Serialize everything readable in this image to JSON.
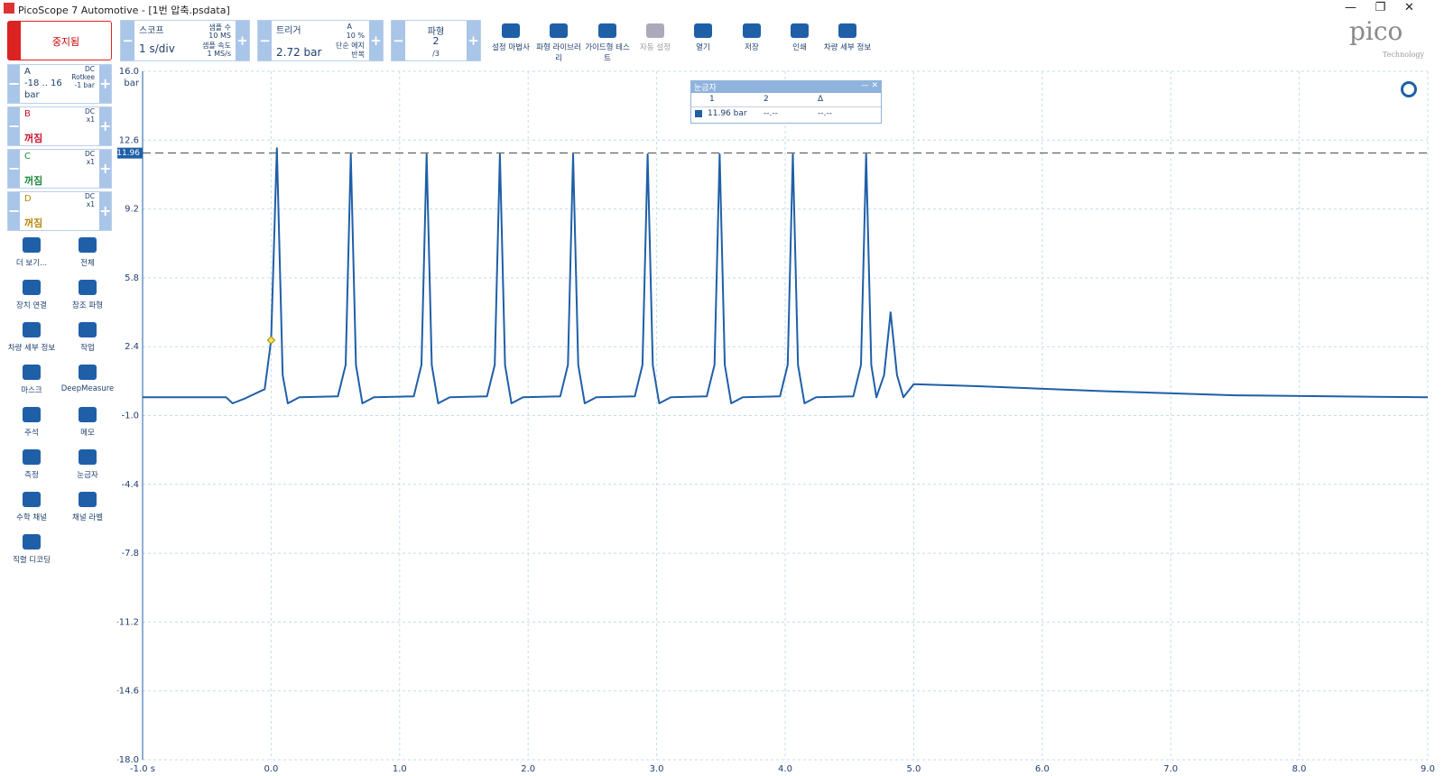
{
  "window_title": "PicoScope 7 Automotive - [1번 압축.psdata]",
  "stop_button": "중지됨",
  "scope": {
    "label": "스코프",
    "timebase": "1 s/div",
    "samples_label": "샘플 수",
    "samples": "10 MS",
    "rate_label": "샘플 속도",
    "rate": "1 MS/s"
  },
  "trigger": {
    "label": "트리거",
    "level": "2.72 bar",
    "channel": "A",
    "percent": "10 %",
    "mode": "단순 에지",
    "repeat": "반복"
  },
  "waveform": {
    "label": "파형",
    "current": "2",
    "total": "/3"
  },
  "toolbar": [
    "설정 마법사",
    "파형 라이브러리",
    "가이드형 테스트",
    "자동 설정",
    "열기",
    "저장",
    "인쇄",
    "차량 세부 정보"
  ],
  "logo": {
    "name": "pico",
    "sub": "Technology"
  },
  "channels": [
    {
      "name": "A",
      "range": "-18 .. 16",
      "unit": "bar",
      "coupling": "DC",
      "probe": "Rotkee",
      "offset": "-1 bar"
    },
    {
      "name": "B",
      "state": "꺼짐",
      "coupling": "DC",
      "probe": "x1"
    },
    {
      "name": "C",
      "state": "꺼짐",
      "coupling": "DC",
      "probe": "x1"
    },
    {
      "name": "D",
      "state": "꺼짐",
      "coupling": "DC",
      "probe": "x1"
    }
  ],
  "tools": [
    "더 보기...",
    "전체",
    "장치 연결",
    "참조 파형",
    "차량 세부 정보",
    "작업",
    "마스크",
    "DeepMeasure",
    "주석",
    "메모",
    "측정",
    "눈금자",
    "수학 채널",
    "채널 라벨",
    "직렬 디코딩"
  ],
  "ruler_window": {
    "title": "눈금자",
    "headers": [
      "1",
      "2",
      "Δ"
    ],
    "row": [
      "11.96 bar",
      "--.--",
      "--.--"
    ]
  },
  "chart_data": {
    "type": "line",
    "y_unit": "bar",
    "x": [
      -1.0,
      -0.35,
      -0.3,
      -0.2,
      -0.05,
      0.0,
      0.045,
      0.09,
      0.13,
      0.22,
      0.52,
      0.58,
      0.62,
      0.66,
      0.71,
      0.8,
      1.11,
      1.17,
      1.21,
      1.25,
      1.3,
      1.39,
      1.68,
      1.74,
      1.78,
      1.82,
      1.87,
      1.96,
      2.25,
      2.31,
      2.35,
      2.39,
      2.44,
      2.53,
      2.83,
      2.89,
      2.93,
      2.97,
      3.02,
      3.11,
      3.39,
      3.45,
      3.49,
      3.53,
      3.58,
      3.67,
      3.96,
      4.02,
      4.06,
      4.1,
      4.15,
      4.24,
      4.53,
      4.59,
      4.63,
      4.67,
      4.71,
      4.77,
      4.82,
      4.87,
      4.92,
      5.0,
      5.5,
      6.5,
      7.5,
      9.0
    ],
    "series": [
      {
        "name": "A",
        "color": "#1f5fa8",
        "values": [
          -0.1,
          -0.1,
          -0.4,
          -0.15,
          0.3,
          2.72,
          12.2,
          1.0,
          -0.4,
          -0.1,
          -0.05,
          1.5,
          11.9,
          1.5,
          -0.4,
          -0.1,
          -0.05,
          1.5,
          11.9,
          1.5,
          -0.4,
          -0.1,
          -0.05,
          1.5,
          11.9,
          1.5,
          -0.4,
          -0.1,
          -0.05,
          1.5,
          11.9,
          1.5,
          -0.4,
          -0.1,
          -0.05,
          1.5,
          11.9,
          1.5,
          -0.4,
          -0.1,
          -0.05,
          1.5,
          11.9,
          1.5,
          -0.4,
          -0.1,
          -0.05,
          1.5,
          11.9,
          1.5,
          -0.4,
          -0.1,
          -0.05,
          1.5,
          11.9,
          1.5,
          -0.1,
          1.0,
          4.1,
          1.0,
          -0.1,
          0.55,
          0.45,
          0.2,
          0.0,
          -0.1
        ]
      }
    ],
    "ruler": 11.96,
    "xlim": [
      -1.0,
      9.0
    ],
    "ylim": [
      -18.0,
      16.0
    ],
    "xticks": [
      {
        "value": -1.0,
        "label": "-1.0 s"
      },
      {
        "value": 0,
        "label": "0.0"
      },
      {
        "value": 1,
        "label": "1.0"
      },
      {
        "value": 2,
        "label": "2.0"
      },
      {
        "value": 3,
        "label": "3.0"
      },
      {
        "value": 4,
        "label": "4.0"
      },
      {
        "value": 5,
        "label": "5.0"
      },
      {
        "value": 6,
        "label": "6.0"
      },
      {
        "value": 7,
        "label": "7.0"
      },
      {
        "value": 8,
        "label": "8.0"
      },
      {
        "value": 9,
        "label": "9.0"
      }
    ],
    "yticks": [
      {
        "value": 16,
        "label": "16.0"
      },
      12.6,
      9.2,
      5.8,
      2.4,
      {
        "value": -1,
        "label": "-1.0"
      },
      -4.4,
      -7.8,
      -11.2,
      -14.6,
      {
        "value": -18,
        "label": "-18.0"
      }
    ],
    "grid": true
  }
}
